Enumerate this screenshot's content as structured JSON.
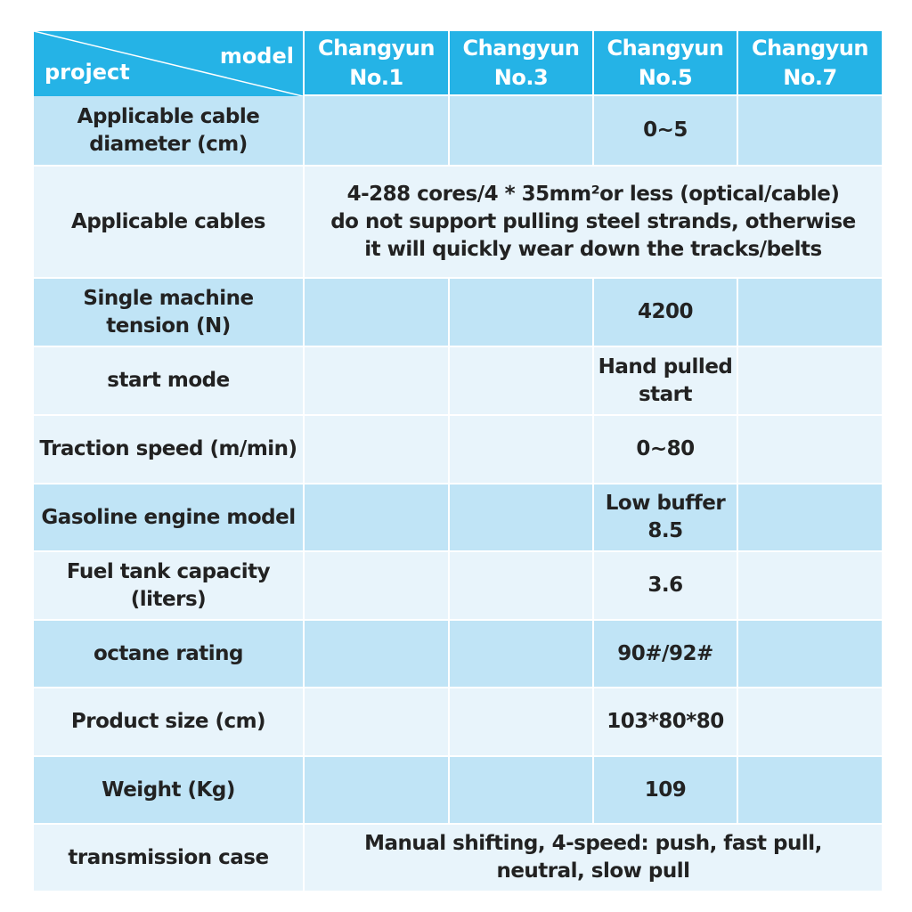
{
  "header": {
    "row_label": "project",
    "col_label": "model",
    "columns": [
      [
        "Changyun",
        "No.1"
      ],
      [
        "Changyun",
        "No.3"
      ],
      [
        "Changyun",
        "No.5"
      ],
      [
        "Changyun",
        "No.7"
      ]
    ]
  },
  "rows": [
    {
      "label": [
        "Applicable cable",
        "diameter (cm)"
      ],
      "cells": [
        null,
        null,
        [
          "0~5"
        ],
        null
      ]
    },
    {
      "label": [
        "Applicable cables"
      ],
      "merged": [
        "4-288 cores/4 * 35mm²or less (optical/cable)",
        "do not support pulling steel strands, otherwise",
        "it will quickly wear down the tracks/belts"
      ]
    },
    {
      "label": [
        "Single machine",
        "tension (N)"
      ],
      "cells": [
        null,
        null,
        [
          "4200"
        ],
        null
      ]
    },
    {
      "label": [
        "start mode"
      ],
      "cells": [
        null,
        null,
        [
          "Hand pulled",
          "start"
        ],
        null
      ]
    },
    {
      "label": [
        "Traction speed (m/min)"
      ],
      "cells": [
        null,
        null,
        [
          "0~80"
        ],
        null
      ]
    },
    {
      "label": [
        "Gasoline engine model"
      ],
      "cells": [
        null,
        null,
        [
          "Low buffer",
          "8.5"
        ],
        null
      ]
    },
    {
      "label": [
        "Fuel tank capacity (liters)"
      ],
      "cells": [
        null,
        null,
        [
          "3.6"
        ],
        null
      ]
    },
    {
      "label": [
        "octane rating"
      ],
      "cells": [
        null,
        null,
        [
          "90#/92#"
        ],
        null
      ]
    },
    {
      "label": [
        "Product size (cm)"
      ],
      "cells": [
        null,
        null,
        [
          "103*80*80"
        ],
        null
      ]
    },
    {
      "label": [
        "Weight (Kg)"
      ],
      "cells": [
        null,
        null,
        [
          "109"
        ],
        null
      ]
    },
    {
      "label": [
        "transmission case"
      ],
      "merged": [
        "Manual shifting, 4-speed: push, fast pull,",
        "neutral, slow pull"
      ]
    }
  ]
}
